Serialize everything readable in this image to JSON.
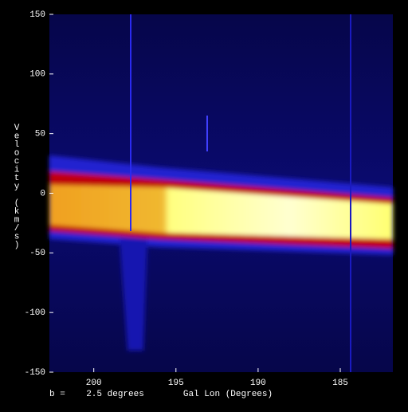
{
  "chart_data": {
    "type": "heatmap",
    "xlabel": "Gal Lon (Degrees)",
    "ylabel": "Velocity (km/s)",
    "annotation": "b =    2.5 degrees",
    "xlim": [
      202.7,
      181.8
    ],
    "xticks": [
      200,
      195,
      190,
      185
    ],
    "ylim": [
      -150,
      150
    ],
    "yticks": [
      150,
      100,
      50,
      0,
      -50,
      -100,
      -150
    ]
  }
}
